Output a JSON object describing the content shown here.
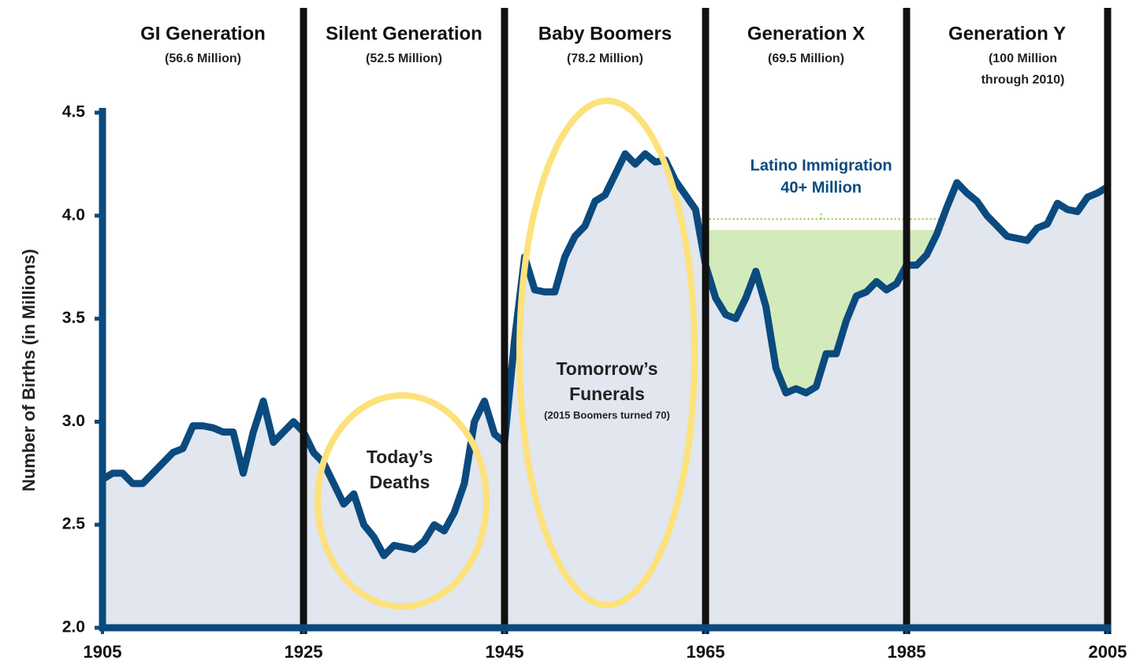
{
  "chart_data": {
    "type": "area",
    "y_label": "Number of Births (in Millions)",
    "xlim": [
      1905,
      2005
    ],
    "ylim": [
      2.0,
      4.5
    ],
    "xticks": [
      1905,
      1925,
      1945,
      1965,
      1985,
      2005
    ],
    "yticks": [
      {
        "value": 2.0,
        "label": "2.0"
      },
      2.5,
      {
        "value": 3.0,
        "label": "3.0"
      },
      3.5,
      {
        "value": 4.0,
        "label": "4.0"
      },
      4.5
    ],
    "line_color": "#0b4a7e",
    "fill_color": "#e1e6ef",
    "x": [
      1905,
      1906,
      1907,
      1908,
      1909,
      1910,
      1911,
      1912,
      1913,
      1914,
      1915,
      1916,
      1917,
      1918,
      1919,
      1920,
      1921,
      1922,
      1923,
      1924,
      1925,
      1926,
      1927,
      1928,
      1929,
      1930,
      1931,
      1932,
      1933,
      1934,
      1935,
      1936,
      1937,
      1938,
      1939,
      1940,
      1941,
      1942,
      1943,
      1944,
      1945,
      1946,
      1947,
      1948,
      1949,
      1950,
      1951,
      1952,
      1953,
      1954,
      1955,
      1956,
      1957,
      1958,
      1959,
      1960,
      1961,
      1962,
      1963,
      1964,
      1965,
      1966,
      1967,
      1968,
      1969,
      1970,
      1971,
      1972,
      1973,
      1974,
      1975,
      1976,
      1977,
      1978,
      1979,
      1980,
      1981,
      1982,
      1983,
      1984,
      1985,
      1986,
      1987,
      1988,
      1989,
      1990,
      1991,
      1992,
      1993,
      1994,
      1995,
      1996,
      1997,
      1998,
      1999,
      2000,
      2001,
      2002,
      2003,
      2004,
      2005
    ],
    "values": [
      2.72,
      2.75,
      2.75,
      2.7,
      2.7,
      2.75,
      2.8,
      2.85,
      2.87,
      2.98,
      2.98,
      2.97,
      2.95,
      2.95,
      2.75,
      2.95,
      3.1,
      2.9,
      2.95,
      3.0,
      2.95,
      2.85,
      2.8,
      2.7,
      2.6,
      2.65,
      2.5,
      2.44,
      2.35,
      2.4,
      2.39,
      2.38,
      2.42,
      2.5,
      2.47,
      2.56,
      2.7,
      3.0,
      3.1,
      2.94,
      2.9,
      3.4,
      3.8,
      3.64,
      3.63,
      3.63,
      3.8,
      3.9,
      3.95,
      4.07,
      4.1,
      4.2,
      4.3,
      4.25,
      4.3,
      4.26,
      4.27,
      4.17,
      4.1,
      4.03,
      3.76,
      3.6,
      3.52,
      3.5,
      3.6,
      3.73,
      3.56,
      3.26,
      3.14,
      3.16,
      3.14,
      3.17,
      3.33,
      3.33,
      3.49,
      3.61,
      3.63,
      3.68,
      3.64,
      3.67,
      3.76,
      3.76,
      3.81,
      3.91,
      4.04,
      4.16,
      4.11,
      4.07,
      4.0,
      3.95,
      3.9,
      3.89,
      3.88,
      3.94,
      3.96,
      4.06,
      4.03,
      4.02,
      4.09,
      4.11,
      4.14
    ],
    "generations": [
      {
        "name": "GI Generation",
        "subtitle": [
          "(56.6 Million)"
        ],
        "x": [
          1905,
          1925
        ]
      },
      {
        "name": "Silent Generation",
        "subtitle": [
          "(52.5 Million)"
        ],
        "x": [
          1925,
          1945
        ]
      },
      {
        "name": "Baby Boomers",
        "subtitle": [
          "(78.2 Million)"
        ],
        "x": [
          1945,
          1965
        ]
      },
      {
        "name": "Generation X",
        "subtitle": [
          "(69.5 Million)"
        ],
        "x": [
          1965,
          1985
        ]
      },
      {
        "name": "Generation Y",
        "subtitle": [
          "(100 Million",
          "through 2010)"
        ],
        "x": [
          1985,
          2005
        ]
      }
    ],
    "highlight": {
      "label": [
        "Latino Immigration",
        "40+ Million"
      ],
      "color": "#d3eabb",
      "x": [
        1964.5,
        1988.5
      ],
      "y": 3.93
    },
    "annotations": [
      {
        "text": [
          "Today’s",
          "Deaths"
        ]
      },
      {
        "text": [
          "Tomorrow’s",
          "Funerals"
        ],
        "note": "(2015 Boomers turned 70)"
      }
    ]
  }
}
